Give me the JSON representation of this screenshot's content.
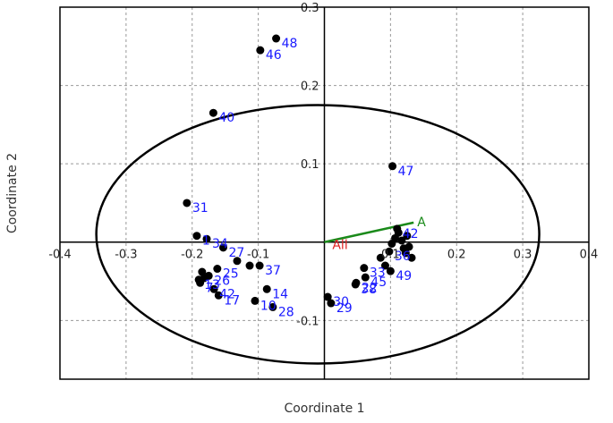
{
  "chart_data": {
    "type": "scatter",
    "xlabel": "Coordinate 1",
    "ylabel": "Coordinate 2",
    "xlim": [
      -0.4,
      0.4
    ],
    "ylim": [
      -0.175,
      0.3
    ],
    "x_ticks": [
      -0.4,
      -0.3,
      -0.2,
      -0.1,
      0.1,
      0.2,
      0.3,
      0.4
    ],
    "x_tick_labels": [
      "-0.4",
      "-0.3",
      "-0.2",
      "-0.1",
      "0.1",
      "0.2",
      "0.3",
      "0.4"
    ],
    "y_ticks": [
      -0.1,
      0.1,
      0.2,
      0.3
    ],
    "y_tick_labels": [
      "-0.1",
      "0.1",
      "0.2",
      "0.3"
    ],
    "grid": true,
    "point_color": "#000000",
    "label_color": "#1a1aff",
    "ellipse": {
      "center": [
        -0.01,
        0.01
      ],
      "rx": 0.335,
      "ry": 0.165
    },
    "vector": {
      "from": [
        0.0,
        0.0
      ],
      "to": [
        0.135,
        0.025
      ],
      "label": "A",
      "color": "#1a8a1a"
    },
    "origin_label": {
      "text": "All",
      "x": 0.012,
      "y": 0.0,
      "color": "#e02020"
    },
    "points": [
      {
        "label": "46",
        "x": -0.097,
        "y": 0.245
      },
      {
        "label": "48",
        "x": -0.073,
        "y": 0.26
      },
      {
        "label": "40",
        "x": -0.168,
        "y": 0.165
      },
      {
        "label": "47",
        "x": 0.103,
        "y": 0.097
      },
      {
        "label": "31",
        "x": -0.208,
        "y": 0.05
      },
      {
        "label": "1",
        "x": -0.193,
        "y": 0.008
      },
      {
        "label": "34",
        "x": -0.178,
        "y": 0.004
      },
      {
        "label": "27",
        "x": -0.153,
        "y": -0.007
      },
      {
        "label": "",
        "x": -0.132,
        "y": -0.024
      },
      {
        "label": "",
        "x": -0.113,
        "y": -0.03
      },
      {
        "label": "25",
        "x": -0.162,
        "y": -0.034
      },
      {
        "label": "37",
        "x": -0.098,
        "y": -0.03
      },
      {
        "label": "",
        "x": -0.185,
        "y": -0.038
      },
      {
        "label": "13",
        "x": -0.19,
        "y": -0.048
      },
      {
        "label": "",
        "x": -0.182,
        "y": -0.046
      },
      {
        "label": "26",
        "x": -0.175,
        "y": -0.043
      },
      {
        "label": "7",
        "x": -0.188,
        "y": -0.052
      },
      {
        "label": "42",
        "x": -0.167,
        "y": -0.06
      },
      {
        "label": "17",
        "x": -0.16,
        "y": -0.068
      },
      {
        "label": "10",
        "x": -0.105,
        "y": -0.075
      },
      {
        "label": "14",
        "x": -0.087,
        "y": -0.06
      },
      {
        "label": "28",
        "x": -0.078,
        "y": -0.083
      },
      {
        "label": "30",
        "x": 0.005,
        "y": -0.07
      },
      {
        "label": "29",
        "x": 0.01,
        "y": -0.078
      },
      {
        "label": "33",
        "x": 0.06,
        "y": -0.033
      },
      {
        "label": "22",
        "x": 0.048,
        "y": -0.052
      },
      {
        "label": "38",
        "x": 0.047,
        "y": -0.054
      },
      {
        "label": "45",
        "x": 0.062,
        "y": -0.045
      },
      {
        "label": "",
        "x": 0.085,
        "y": -0.02
      },
      {
        "label": "",
        "x": 0.092,
        "y": -0.03
      },
      {
        "label": "36",
        "x": 0.098,
        "y": -0.012
      },
      {
        "label": "",
        "x": 0.102,
        "y": -0.002
      },
      {
        "label": "",
        "x": 0.107,
        "y": 0.005
      },
      {
        "label": "",
        "x": 0.112,
        "y": 0.012
      },
      {
        "label": "",
        "x": 0.117,
        "y": 0.002
      },
      {
        "label": "",
        "x": 0.12,
        "y": -0.008
      },
      {
        "label": "42",
        "x": 0.11,
        "y": 0.017
      },
      {
        "label": "",
        "x": 0.125,
        "y": 0.008
      },
      {
        "label": "",
        "x": 0.123,
        "y": -0.014
      },
      {
        "label": "",
        "x": 0.132,
        "y": -0.02
      },
      {
        "label": "",
        "x": 0.128,
        "y": -0.006
      },
      {
        "label": "49",
        "x": 0.1,
        "y": -0.037
      }
    ]
  }
}
